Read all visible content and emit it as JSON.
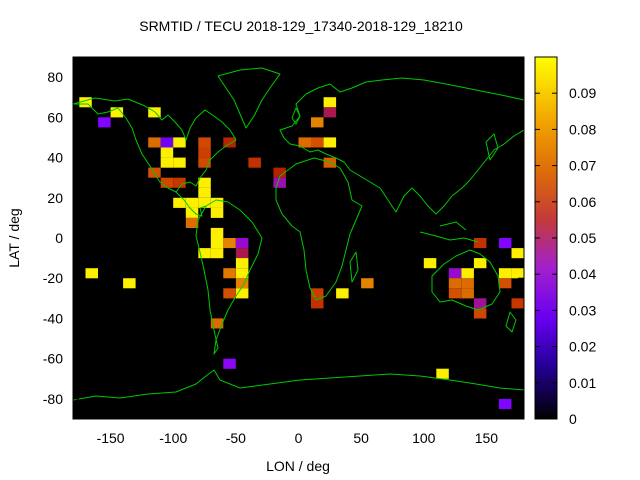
{
  "chart_data": {
    "type": "heatmap",
    "title": "SRMTID / TECU 2018-129_17340-2018-129_18210",
    "xlabel": "LON / deg",
    "ylabel": "LAT / deg",
    "xlim": [
      -180,
      180
    ],
    "ylim": [
      -90,
      90
    ],
    "x_ticks": [
      "-150",
      "-100",
      "-50",
      "0",
      "50",
      "100",
      "150"
    ],
    "y_ticks": [
      "80",
      "60",
      "40",
      "20",
      "0",
      "-20",
      "-40",
      "-60",
      "-80"
    ],
    "colorbar": {
      "min": 0,
      "max": 0.1,
      "ticks": [
        "0.09",
        "0.08",
        "0.07",
        "0.06",
        "0.05",
        "0.04",
        "0.03",
        "0.02",
        "0.01",
        "0"
      ]
    },
    "cell_size_deg": [
      10,
      5
    ],
    "colors": {
      "background": "#000000",
      "coastline": "#00c800"
    },
    "cells": [
      {
        "lon": -170,
        "lat": 67.5,
        "value": 0.098
      },
      {
        "lon": -155,
        "lat": 57.5,
        "value": 0.025
      },
      {
        "lon": -145,
        "lat": 62.5,
        "value": 0.098
      },
      {
        "lon": -115,
        "lat": 62.5,
        "value": 0.098
      },
      {
        "lon": -115,
        "lat": 47.5,
        "value": 0.075
      },
      {
        "lon": -105,
        "lat": 47.5,
        "value": 0.02
      },
      {
        "lon": -105,
        "lat": 42.5,
        "value": 0.098
      },
      {
        "lon": -95,
        "lat": 47.5,
        "value": 0.098
      },
      {
        "lon": -105,
        "lat": 37.5,
        "value": 0.098
      },
      {
        "lon": -95,
        "lat": 37.5,
        "value": 0.098
      },
      {
        "lon": -115,
        "lat": 32.5,
        "value": 0.068
      },
      {
        "lon": -105,
        "lat": 27.5,
        "value": 0.065
      },
      {
        "lon": -95,
        "lat": 27.5,
        "value": 0.06
      },
      {
        "lon": -75,
        "lat": 47.5,
        "value": 0.066
      },
      {
        "lon": -55,
        "lat": 47.5,
        "value": 0.052
      },
      {
        "lon": -75,
        "lat": 42.5,
        "value": 0.063
      },
      {
        "lon": -75,
        "lat": 37.5,
        "value": 0.066
      },
      {
        "lon": -35,
        "lat": 37.5,
        "value": 0.058
      },
      {
        "lon": -15,
        "lat": 32.5,
        "value": 0.05
      },
      {
        "lon": -15,
        "lat": 27.5,
        "value": 0.038
      },
      {
        "lon": -75,
        "lat": 27.5,
        "value": 0.098
      },
      {
        "lon": -75,
        "lat": 22.5,
        "value": 0.098
      },
      {
        "lon": -95,
        "lat": 17.5,
        "value": 0.098
      },
      {
        "lon": -85,
        "lat": 17.5,
        "value": 0.098
      },
      {
        "lon": -75,
        "lat": 17.5,
        "value": 0.098
      },
      {
        "lon": -65,
        "lat": 17.5,
        "value": 0.098
      },
      {
        "lon": -85,
        "lat": 12.5,
        "value": 0.098
      },
      {
        "lon": -65,
        "lat": 12.5,
        "value": 0.098
      },
      {
        "lon": -85,
        "lat": 7.5,
        "value": 0.075
      },
      {
        "lon": -65,
        "lat": 2.5,
        "value": 0.098
      },
      {
        "lon": -65,
        "lat": -2.5,
        "value": 0.098
      },
      {
        "lon": -55,
        "lat": -2.5,
        "value": 0.08
      },
      {
        "lon": -45,
        "lat": -2.5,
        "value": 0.035
      },
      {
        "lon": -75,
        "lat": -7.5,
        "value": 0.098
      },
      {
        "lon": -65,
        "lat": -7.5,
        "value": 0.098
      },
      {
        "lon": -45,
        "lat": -7.5,
        "value": 0.045
      },
      {
        "lon": -45,
        "lat": -12.5,
        "value": 0.098
      },
      {
        "lon": -45,
        "lat": -17.5,
        "value": 0.098
      },
      {
        "lon": -55,
        "lat": -17.5,
        "value": 0.078
      },
      {
        "lon": -45,
        "lat": -22.5,
        "value": 0.08
      },
      {
        "lon": -45,
        "lat": -27.5,
        "value": 0.098
      },
      {
        "lon": -55,
        "lat": -27.5,
        "value": 0.068
      },
      {
        "lon": -65,
        "lat": -42.5,
        "value": 0.075
      },
      {
        "lon": -55,
        "lat": -62.5,
        "value": 0.03
      },
      {
        "lon": -165,
        "lat": -17.5,
        "value": 0.098
      },
      {
        "lon": -135,
        "lat": -22.5,
        "value": 0.098
      },
      {
        "lon": 25,
        "lat": 67.5,
        "value": 0.098
      },
      {
        "lon": 25,
        "lat": 62.5,
        "value": 0.045
      },
      {
        "lon": 15,
        "lat": 57.5,
        "value": 0.08
      },
      {
        "lon": 5,
        "lat": 47.5,
        "value": 0.075
      },
      {
        "lon": 15,
        "lat": 47.5,
        "value": 0.068
      },
      {
        "lon": 25,
        "lat": 47.5,
        "value": 0.098
      },
      {
        "lon": 25,
        "lat": 37.5,
        "value": 0.072
      },
      {
        "lon": 15,
        "lat": -27.5,
        "value": 0.062
      },
      {
        "lon": 15,
        "lat": -32.5,
        "value": 0.058
      },
      {
        "lon": 35,
        "lat": -27.5,
        "value": 0.098
      },
      {
        "lon": 55,
        "lat": -22.5,
        "value": 0.08
      },
      {
        "lon": 105,
        "lat": -12.5,
        "value": 0.098
      },
      {
        "lon": 125,
        "lat": -17.5,
        "value": 0.035
      },
      {
        "lon": 135,
        "lat": -17.5,
        "value": 0.098
      },
      {
        "lon": 125,
        "lat": -22.5,
        "value": 0.075
      },
      {
        "lon": 135,
        "lat": -22.5,
        "value": 0.075
      },
      {
        "lon": 125,
        "lat": -27.5,
        "value": 0.068
      },
      {
        "lon": 135,
        "lat": -27.5,
        "value": 0.075
      },
      {
        "lon": 145,
        "lat": -2.5,
        "value": 0.058
      },
      {
        "lon": 145,
        "lat": -12.5,
        "value": 0.098
      },
      {
        "lon": 145,
        "lat": -37.5,
        "value": 0.065
      },
      {
        "lon": 145,
        "lat": -32.5,
        "value": 0.04
      },
      {
        "lon": 165,
        "lat": -2.5,
        "value": 0.025
      },
      {
        "lon": 175,
        "lat": -7.5,
        "value": 0.098
      },
      {
        "lon": 165,
        "lat": -17.5,
        "value": 0.098
      },
      {
        "lon": 175,
        "lat": -17.5,
        "value": 0.098
      },
      {
        "lon": 165,
        "lat": -22.5,
        "value": 0.068
      },
      {
        "lon": 175,
        "lat": -32.5,
        "value": 0.06
      },
      {
        "lon": 165,
        "lat": -82.5,
        "value": 0.025
      },
      {
        "lon": 115,
        "lat": -67.5,
        "value": 0.098
      }
    ]
  }
}
